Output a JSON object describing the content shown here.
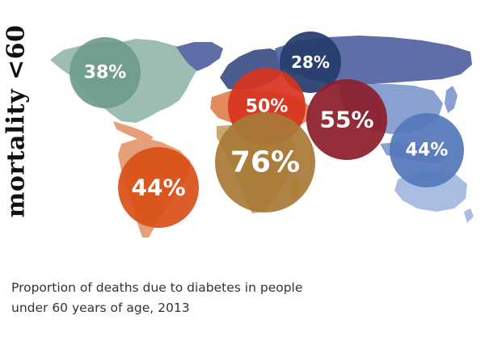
{
  "title": "mortality <60",
  "caption": {
    "line1": "Proportion of deaths due to diabetes in people",
    "line2": "under 60 years of age, 2013"
  },
  "chart_data": {
    "type": "bubble-map",
    "title": "mortality <60",
    "unit": "%",
    "regions": [
      {
        "label": "38%",
        "value": 38,
        "color": "#6e9c8d",
        "text_size": "medium",
        "continent": "north-america"
      },
      {
        "label": "44%",
        "value": 44,
        "color": "#d95119",
        "text_size": "large",
        "continent": "south-america"
      },
      {
        "label": "28%",
        "value": 28,
        "color": "#263c6d",
        "text_size": "small",
        "continent": "europe"
      },
      {
        "label": "50%",
        "value": 50,
        "color": "#d8341f",
        "text_size": "medium",
        "continent": "north-africa-middle-east"
      },
      {
        "label": "76%",
        "value": 76,
        "color": "#a87a37",
        "text_size": "xlarge",
        "continent": "africa"
      },
      {
        "label": "55%",
        "value": 55,
        "color": "#8b1e2b",
        "text_size": "large",
        "continent": "south-east-asia"
      },
      {
        "label": "44%",
        "value": 44,
        "color": "#5578bb",
        "text_size": "medium",
        "continent": "western-pacific"
      }
    ],
    "map_colors": {
      "north_america": "#9dbcb2",
      "south_america": "#e6a079",
      "europe": "#4b5d8f",
      "africa": "#c9a876",
      "asia_north": "#5f6ea8",
      "asia_east": "#8aa0d0",
      "oceania": "#a9bde2",
      "middle_east": "#e28a5e"
    }
  }
}
